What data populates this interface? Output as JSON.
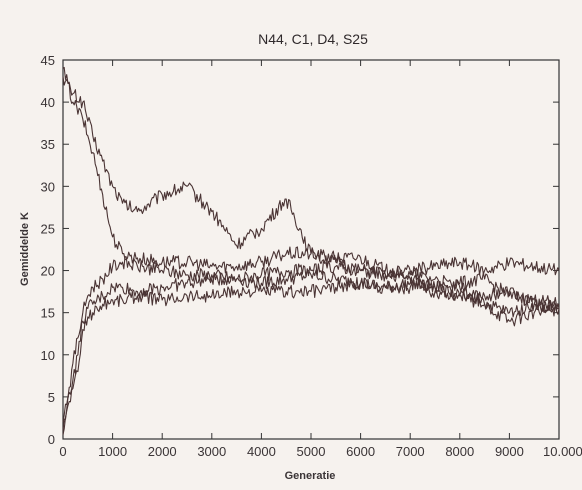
{
  "chart_data": {
    "type": "line",
    "title": "N44, C1, D4, S25",
    "xlabel": "Generatie",
    "ylabel": "Gemiddelde K",
    "xlim": [
      0,
      10000
    ],
    "ylim": [
      0,
      45
    ],
    "x_ticks": [
      0,
      1000,
      2000,
      3000,
      4000,
      5000,
      6000,
      7000,
      8000,
      9000,
      10000
    ],
    "x_tick_labels": [
      "0",
      "1000",
      "2000",
      "3000",
      "4000",
      "5000",
      "6000",
      "7000",
      "8000",
      "9000",
      "10.000"
    ],
    "y_ticks": [
      0,
      5,
      10,
      15,
      20,
      25,
      30,
      35,
      40,
      45
    ],
    "y_tick_labels": [
      "0",
      "5",
      "10",
      "15",
      "20",
      "25",
      "30",
      "35",
      "40",
      "45"
    ],
    "grid": false,
    "colors": {
      "line": "#4a3434",
      "axis": "#333333",
      "text": "#3a3436",
      "background": "#f6f2ee",
      "last_tick": "#9a9a9a"
    },
    "series": [
      {
        "x": [
          0,
          200,
          400,
          600,
          800,
          1000,
          1200,
          1500,
          2000,
          2500,
          3000,
          3500,
          4000,
          4500,
          5000,
          5500,
          6000,
          6500,
          7000,
          7500,
          8000,
          8500,
          9000,
          9500,
          10000
        ],
        "y": [
          43,
          41,
          40,
          36,
          33,
          30,
          28,
          27,
          29,
          30,
          27,
          23,
          25,
          28.5,
          22,
          21,
          20,
          19.5,
          19,
          18,
          17,
          16,
          15,
          16,
          15.5
        ]
      },
      {
        "x": [
          0,
          200,
          400,
          600,
          800,
          1000,
          1200,
          1500,
          2000,
          2500,
          3000,
          3500,
          4000,
          4500,
          5000,
          5500,
          6000,
          6500,
          7000,
          7500,
          8000,
          8500,
          9000,
          9500,
          10000
        ],
        "y": [
          44,
          40,
          38,
          34,
          29,
          24,
          22,
          21.5,
          21,
          21,
          20.5,
          20.5,
          21,
          22,
          22,
          21.5,
          21.5,
          20,
          19.5,
          19,
          18,
          16,
          14,
          15,
          15.5
        ]
      },
      {
        "x": [
          0,
          100,
          200,
          300,
          400,
          500,
          600,
          800,
          1000,
          1200,
          1500,
          2000,
          2500,
          3000,
          3500,
          4000,
          4500,
          5000,
          5500,
          6000,
          6500,
          7000,
          7500,
          8000,
          8500,
          9000,
          9500,
          10000
        ],
        "y": [
          1,
          5,
          9,
          12,
          15,
          17,
          18,
          19,
          20.5,
          21,
          20.5,
          20,
          19.5,
          19.5,
          19,
          19.5,
          20,
          20,
          20.5,
          20,
          19.5,
          20,
          20.5,
          21,
          20,
          21,
          20.5,
          20
        ]
      },
      {
        "x": [
          0,
          100,
          200,
          300,
          400,
          500,
          600,
          800,
          1000,
          1200,
          1500,
          2000,
          2500,
          3000,
          3500,
          4000,
          4500,
          5000,
          5500,
          6000,
          6500,
          7000,
          7500,
          8000,
          8500,
          9000,
          9500,
          10000
        ],
        "y": [
          2,
          5,
          7,
          10,
          14,
          15.5,
          16,
          17,
          18,
          18,
          17.5,
          18,
          18.5,
          19,
          19,
          18.5,
          19,
          19.5,
          19,
          18.5,
          18,
          18.5,
          18,
          18.5,
          19,
          17,
          16.5,
          16
        ]
      },
      {
        "x": [
          0,
          100,
          200,
          300,
          400,
          500,
          600,
          800,
          1000,
          1200,
          1500,
          2000,
          2500,
          3000,
          3500,
          4000,
          4500,
          5000,
          5500,
          6000,
          6500,
          7000,
          7500,
          8000,
          8500,
          9000,
          9500,
          10000
        ],
        "y": [
          0.5,
          4,
          6,
          8,
          13,
          14.5,
          15,
          16,
          16.5,
          16.5,
          17,
          16.5,
          17,
          17,
          17.5,
          17.5,
          17.5,
          17.5,
          18,
          18.5,
          18,
          18,
          17.5,
          17,
          17,
          17.5,
          16,
          15.5
        ]
      }
    ]
  }
}
